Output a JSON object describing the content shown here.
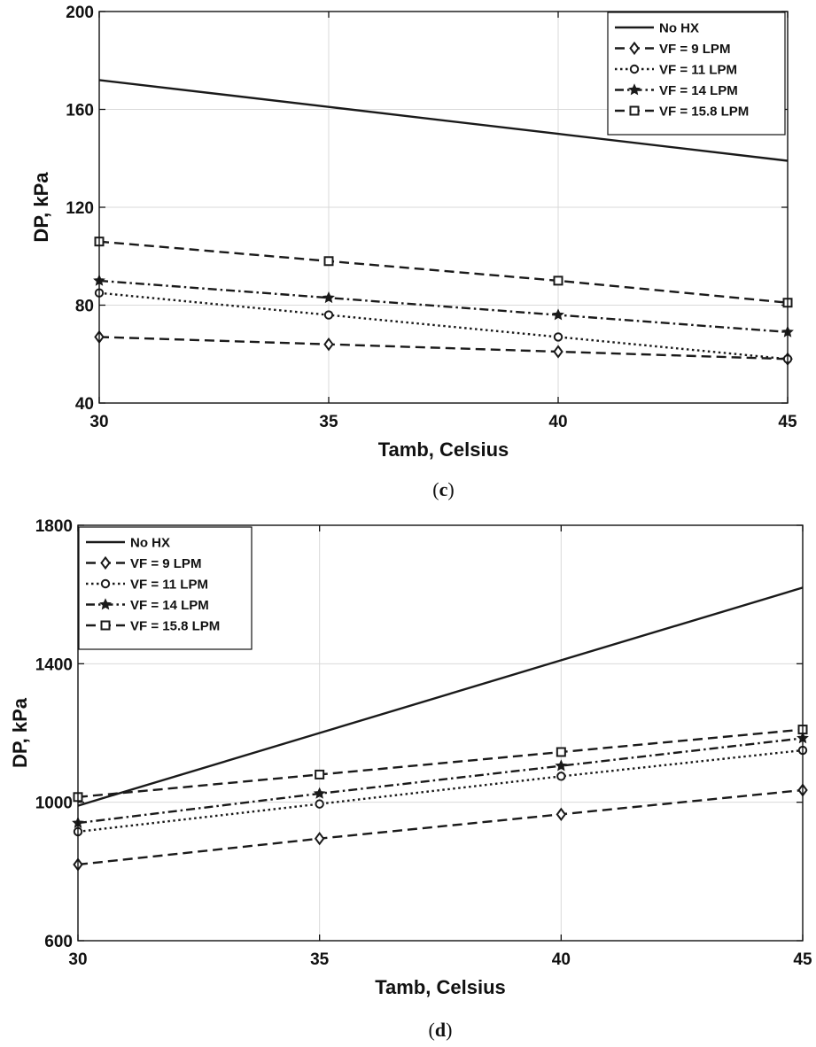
{
  "chart_data": [
    {
      "type": "line",
      "panel": "c",
      "caption_open": "(",
      "caption_letter": "c",
      "caption_close": ")",
      "title": "",
      "xlabel": "Tamb, Celsius",
      "ylabel": "DP, kPa",
      "xlim": [
        30,
        45
      ],
      "ylim": [
        40,
        200
      ],
      "xticks": [
        30,
        35,
        40,
        45
      ],
      "yticks": [
        40,
        80,
        120,
        160,
        200
      ],
      "grid": true,
      "legend_position": "top-right",
      "x": [
        30,
        35,
        40,
        45
      ],
      "series": [
        {
          "name": "No HX",
          "values": [
            172,
            161,
            150,
            139
          ],
          "style": "solid",
          "marker": "none"
        },
        {
          "name": "VF = 9 LPM",
          "values": [
            67,
            64,
            61,
            58
          ],
          "style": "dashed",
          "marker": "diamond"
        },
        {
          "name": "VF = 11 LPM",
          "values": [
            85,
            76,
            67,
            58
          ],
          "style": "dotted",
          "marker": "circle"
        },
        {
          "name": "VF = 14 LPM",
          "values": [
            90,
            83,
            76,
            69
          ],
          "style": "dashdot",
          "marker": "star"
        },
        {
          "name": "VF = 15.8 LPM",
          "values": [
            106,
            98,
            90,
            81
          ],
          "style": "dashed",
          "marker": "square"
        }
      ]
    },
    {
      "type": "line",
      "panel": "d",
      "caption_open": "(",
      "caption_letter": "d",
      "caption_close": ")",
      "title": "",
      "xlabel": "Tamb, Celsius",
      "ylabel": "DP, kPa",
      "xlim": [
        30,
        45
      ],
      "ylim": [
        600,
        1800
      ],
      "xticks": [
        30,
        35,
        40,
        45
      ],
      "yticks": [
        600,
        1000,
        1400,
        1800
      ],
      "grid": true,
      "legend_position": "top-left",
      "x": [
        30,
        35,
        40,
        45
      ],
      "series": [
        {
          "name": "No HX",
          "values": [
            990,
            1200,
            1410,
            1620
          ],
          "style": "solid",
          "marker": "none"
        },
        {
          "name": "VF = 9 LPM",
          "values": [
            820,
            895,
            965,
            1035
          ],
          "style": "dashed",
          "marker": "diamond"
        },
        {
          "name": "VF = 11 LPM",
          "values": [
            915,
            995,
            1075,
            1150
          ],
          "style": "dotted",
          "marker": "circle"
        },
        {
          "name": "VF = 14 LPM",
          "values": [
            940,
            1025,
            1105,
            1185
          ],
          "style": "dashdot",
          "marker": "star"
        },
        {
          "name": "VF = 15.8 LPM",
          "values": [
            1015,
            1080,
            1145,
            1210
          ],
          "style": "dashed",
          "marker": "square"
        }
      ]
    }
  ]
}
